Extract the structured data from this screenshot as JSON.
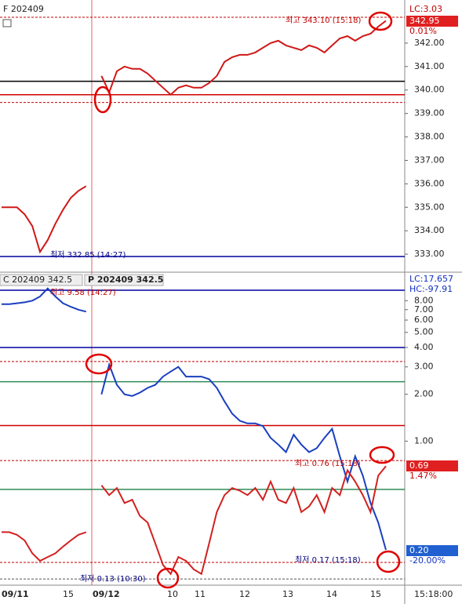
{
  "x_axis": {
    "labels": [
      "09/11",
      "15",
      "09/12",
      "10",
      "11",
      "12",
      "13",
      "14",
      "15"
    ],
    "time": "15:18:00"
  },
  "chart_data": [
    {
      "type": "line",
      "title": "F 202409",
      "ylim": [
        332.3,
        343.67
      ],
      "yticks": [
        {
          "value": 342,
          "label": "342.00"
        },
        {
          "value": 341,
          "label": "341.00"
        },
        {
          "value": 340,
          "label": "340.00"
        },
        {
          "value": 339,
          "label": "339.00"
        },
        {
          "value": 338,
          "label": "338.00"
        },
        {
          "value": 337,
          "label": "337.00"
        },
        {
          "value": 336,
          "label": "336.00"
        },
        {
          "value": 335,
          "label": "335.00"
        },
        {
          "value": 334,
          "label": "334.00"
        },
        {
          "value": 333,
          "label": "333.00"
        }
      ],
      "series": [
        {
          "color": "#d01818",
          "values": [
            335.0,
            335.0,
            335.0,
            334.7,
            334.2,
            333.1,
            333.6,
            334.3,
            334.9,
            335.4,
            335.7,
            335.9,
            null,
            340.6,
            339.9,
            340.8,
            341.0,
            340.9,
            340.9,
            340.7,
            340.4,
            340.1,
            339.8,
            340.1,
            340.2,
            340.1,
            340.1,
            340.3,
            340.6,
            341.2,
            341.4,
            341.5,
            341.5,
            341.6,
            341.8,
            342.0,
            342.1,
            341.9,
            341.8,
            341.7,
            341.9,
            341.8,
            341.6,
            341.9,
            342.2,
            342.3,
            342.1,
            342.3,
            342.4,
            342.7,
            342.95
          ]
        }
      ],
      "hlines": [
        {
          "value": 343.1,
          "color": "#c00000",
          "style": "dashed"
        },
        {
          "value": 340.37,
          "color": "#000000",
          "style": "solid"
        },
        {
          "value": 339.8,
          "color": "#d00000",
          "style": "solid"
        },
        {
          "value": 339.47,
          "color": "#c00000",
          "style": "dashed"
        },
        {
          "value": 332.9,
          "color": "#0000a0",
          "style": "solid"
        }
      ],
      "annotations": [
        "최고 343.10 (15:18)",
        "최저 332.85 (14:27)"
      ],
      "tags": {
        "lc": "LC:3.03",
        "price": "342.95",
        "change": "0.01%"
      }
    },
    {
      "type": "line",
      "title": "C 202409 342.5",
      "title2": "P 202409 342.5",
      "log_scale": true,
      "ylim": [
        0.12,
        11.5
      ],
      "yticks": [
        {
          "value": 8,
          "label": "8.00"
        },
        {
          "value": 7,
          "label": "7.00"
        },
        {
          "value": 6,
          "label": "6.00"
        },
        {
          "value": 5,
          "label": "5.00"
        },
        {
          "value": 4,
          "label": "4.00"
        },
        {
          "value": 3,
          "label": "3.00"
        },
        {
          "value": 2,
          "label": "2.00"
        },
        {
          "value": 1,
          "label": "1.00"
        }
      ],
      "series": [
        {
          "color": "#1a3fbf",
          "values": [
            7.6,
            7.6,
            7.7,
            7.8,
            8.0,
            8.5,
            9.58,
            8.5,
            7.7,
            7.3,
            7.0,
            6.8,
            null,
            2.0,
            3.1,
            2.3,
            2.0,
            1.95,
            2.05,
            2.2,
            2.3,
            2.6,
            2.8,
            3.0,
            2.6,
            2.6,
            2.6,
            2.5,
            2.2,
            1.8,
            1.5,
            1.35,
            1.3,
            1.3,
            1.25,
            1.05,
            0.95,
            0.85,
            1.1,
            0.95,
            0.85,
            0.9,
            1.05,
            1.2,
            0.8,
            0.55,
            0.8,
            0.6,
            0.4,
            0.3,
            0.2
          ]
        },
        {
          "color": "#d22020",
          "values": [
            0.26,
            0.26,
            0.25,
            0.23,
            0.19,
            0.17,
            0.18,
            0.19,
            0.21,
            0.23,
            0.25,
            0.26,
            null,
            0.52,
            0.45,
            0.5,
            0.4,
            0.42,
            0.33,
            0.3,
            0.22,
            0.16,
            0.14,
            0.18,
            0.17,
            0.15,
            0.14,
            0.22,
            0.35,
            0.45,
            0.5,
            0.48,
            0.45,
            0.5,
            0.42,
            0.55,
            0.42,
            0.4,
            0.5,
            0.35,
            0.38,
            0.45,
            0.35,
            0.5,
            0.45,
            0.65,
            0.55,
            0.45,
            0.35,
            0.6,
            0.69
          ]
        }
      ],
      "hlines": [
        {
          "value": 9.33,
          "color": "#0000a0",
          "style": "solid"
        },
        {
          "value": 4.0,
          "color": "#0000a0",
          "style": "solid"
        },
        {
          "value": 3.25,
          "color": "#c00000",
          "style": "dashed"
        },
        {
          "value": 2.41,
          "color": "#2e8b57",
          "style": "solid"
        },
        {
          "value": 1.26,
          "color": "#d00000",
          "style": "solid"
        },
        {
          "value": 0.75,
          "color": "#c00000",
          "style": "dashed"
        },
        {
          "value": 0.49,
          "color": "#2e8b57",
          "style": "solid"
        },
        {
          "value": 0.166,
          "color": "#c00000",
          "style": "dashed"
        },
        {
          "value": 0.13,
          "color": "#555555",
          "style": "dashed"
        }
      ],
      "annotations": [
        "최고 9.58 (14:27)",
        "최고 0.76 (15:18)",
        "최저 0.13 (10:30)",
        "최저 0.17 (15:18)"
      ],
      "tags": {
        "lc": "LC:17.657",
        "hc": "HC:-97.91",
        "put_price": "0.69",
        "put_change": "1.47%",
        "call_price": "0.20",
        "call_change": "-20.00%"
      }
    }
  ]
}
